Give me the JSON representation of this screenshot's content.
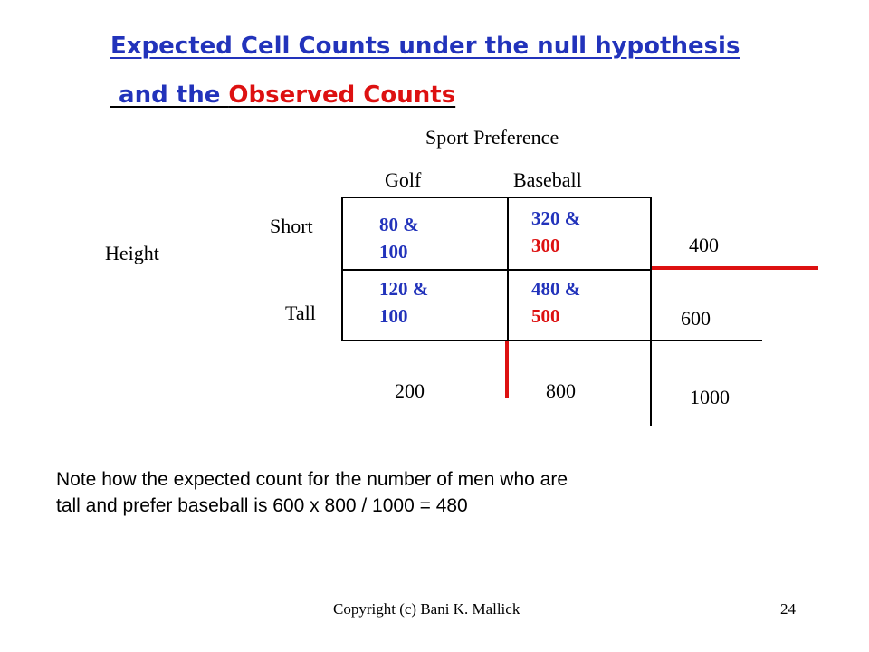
{
  "title": {
    "line1": "Expected Cell Counts under the null hypothesis",
    "line2_prefix": " and the ",
    "line2_highlight": "Observed Counts"
  },
  "table": {
    "column_header": "Sport Preference",
    "columns": [
      "Golf",
      "Baseball"
    ],
    "row_header": "Height",
    "rows": [
      "Short",
      "Tall"
    ],
    "cells": [
      [
        {
          "expected": "80 &",
          "observed": "100"
        },
        {
          "expected": "320 &",
          "observed": "300"
        }
      ],
      [
        {
          "expected": "120 &",
          "observed": "100"
        },
        {
          "expected": "480 &",
          "observed": "500"
        }
      ]
    ],
    "row_totals": [
      "400",
      "600"
    ],
    "column_totals": [
      "200",
      "800"
    ],
    "grand_total": "1000"
  },
  "note": {
    "line1": "Note how the expected count for the number of men who are",
    "line2": "tall and prefer baseball is 600 x 800 / 1000 = 480"
  },
  "footer": {
    "copyright": "Copyright (c) Bani K. Mallick",
    "page_number": "24"
  },
  "colors": {
    "expected": "#2233bb",
    "observed": "#dd1111",
    "title_blue": "#2233bb"
  }
}
